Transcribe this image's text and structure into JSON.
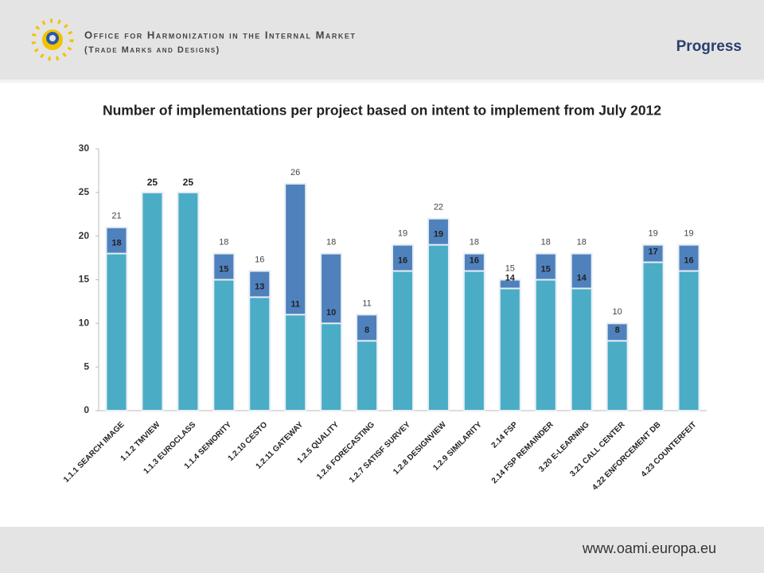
{
  "header": {
    "org": "Office for Harmonization in the Internal Market",
    "org_sub": "(Trade Marks and Designs)",
    "section": "Progress"
  },
  "footer": {
    "url": "www.oami.europa.eu"
  },
  "chart_data": {
    "type": "bar",
    "title": "Number of implementations per project based on intent to implement from July 2012",
    "categories": [
      "1.1.1 SEARCH IMAGE",
      "1.1.2 TMVIEW",
      "1.1.3 EUROCLASS",
      "1.1.4 SENIORITY",
      "1.2.10 CESTO",
      "1.2.11 GATEWAY",
      "1.2.5 QUALITY",
      "1.2.6 FORECASTING",
      "1.2.7 SATISF SURVEY",
      "1.2.8 DESIGNVIEW",
      "1.2.9 SIMILARITY",
      "2.14 FSP",
      "2.14 FSP REMAINDER",
      "3.20 E-LEARNING",
      "3.21 CALL CENTER",
      "4.22 ENFORCEMENT DB",
      "4.23 COUNTERFEIT"
    ],
    "series": [
      {
        "color": "#4f81bd",
        "values": [
          21,
          25,
          25,
          18,
          16,
          26,
          18,
          11,
          19,
          22,
          18,
          15,
          18,
          18,
          10,
          19,
          19
        ]
      },
      {
        "color": "#4bacc6",
        "values": [
          18,
          25,
          25,
          15,
          13,
          11,
          10,
          8,
          16,
          19,
          16,
          14,
          15,
          14,
          8,
          17,
          16
        ]
      }
    ],
    "ylim": [
      0,
      30
    ],
    "yticks": [
      0,
      5,
      10,
      15,
      20,
      25,
      30
    ],
    "grid": false
  }
}
